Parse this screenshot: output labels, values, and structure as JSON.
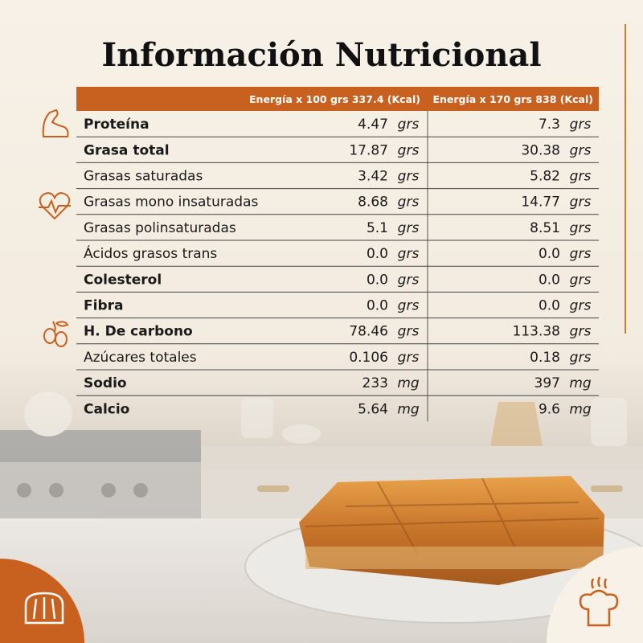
{
  "header": {
    "title": "Información Nutricional"
  },
  "table": {
    "columns": [
      "Energía x 100 grs 337.4 (Kcal)",
      "Energía x 170 grs 838 (Kcal)"
    ],
    "rows": [
      {
        "label": "Proteína",
        "bold": true,
        "values": [
          "4.47",
          "7.3"
        ],
        "units": [
          "grs",
          "grs"
        ]
      },
      {
        "label": "Grasa total",
        "bold": true,
        "values": [
          "17.87",
          "30.38"
        ],
        "units": [
          "grs",
          "grs"
        ]
      },
      {
        "label": "Grasas saturadas",
        "bold": false,
        "values": [
          "3.42",
          "5.82"
        ],
        "units": [
          "grs",
          "grs"
        ]
      },
      {
        "label": "Grasas mono insaturadas",
        "bold": false,
        "values": [
          "8.68",
          "14.77"
        ],
        "units": [
          "grs",
          "grs"
        ]
      },
      {
        "label": "Grasas polinsaturadas",
        "bold": false,
        "values": [
          "5.1",
          "8.51"
        ],
        "units": [
          "grs",
          "grs"
        ]
      },
      {
        "label": "Ácidos grasos trans",
        "bold": false,
        "values": [
          "0.0",
          "0.0"
        ],
        "units": [
          "grs",
          "grs"
        ]
      },
      {
        "label": "Colesterol",
        "bold": true,
        "values": [
          "0.0",
          "0.0"
        ],
        "units": [
          "grs",
          "grs"
        ]
      },
      {
        "label": "Fibra",
        "bold": true,
        "values": [
          "0.0",
          "0.0"
        ],
        "units": [
          "grs",
          "grs"
        ]
      },
      {
        "label": "H. De carbono",
        "bold": true,
        "values": [
          "78.46",
          "113.38"
        ],
        "units": [
          "grs",
          "grs"
        ]
      },
      {
        "label": "Azúcares totales",
        "bold": false,
        "values": [
          "0.106",
          "0.18"
        ],
        "units": [
          "grs",
          "grs"
        ]
      },
      {
        "label": "Sodio",
        "bold": true,
        "values": [
          "233",
          "397"
        ],
        "units": [
          "mg",
          "mg"
        ]
      },
      {
        "label": "Calcio",
        "bold": true,
        "values": [
          "5.64",
          "9.6"
        ],
        "units": [
          "mg",
          "mg"
        ]
      }
    ]
  }
}
